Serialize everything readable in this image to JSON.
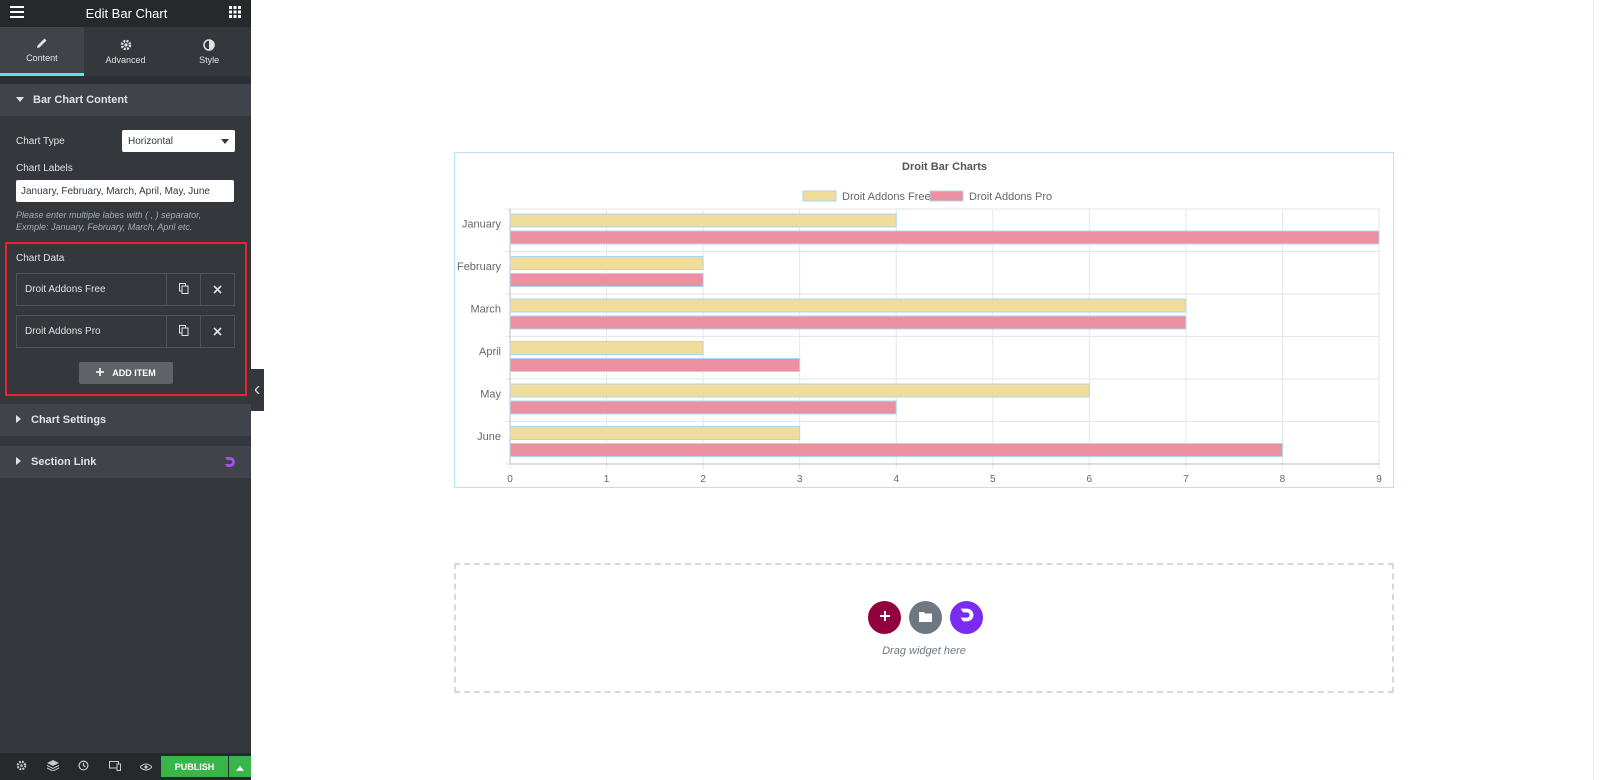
{
  "topbar": {
    "title": "Edit Bar Chart"
  },
  "tabs": [
    {
      "label": "Content",
      "icon": "pencil-icon"
    },
    {
      "label": "Advanced",
      "icon": "gear-icon"
    },
    {
      "label": "Style",
      "icon": "half-circle-icon"
    }
  ],
  "content_section": {
    "title": "Bar Chart Content",
    "chart_type_label": "Chart Type",
    "chart_type_value": "Horizontal",
    "chart_labels_label": "Chart Labels",
    "chart_labels_value": "January, February, March, April, May, June",
    "labels_desc_line1": "Please enter multiple labes with ( , ) separator,",
    "labels_desc_line2": "Exmple: January, February, March, April etc.",
    "chart_data_label": "Chart Data",
    "items": [
      {
        "title": "Droit Addons Free"
      },
      {
        "title": "Droit Addons Pro"
      }
    ],
    "add_item_label": "ADD ITEM"
  },
  "collapsed_sections": [
    {
      "title": "Chart Settings"
    },
    {
      "title": "Section Link"
    }
  ],
  "bottombar": {
    "publish_label": "PUBLISH"
  },
  "dropzone": {
    "text": "Drag widget here"
  },
  "colors": {
    "free_fill": "#f0dc9b",
    "pro_fill": "#ec8fa0",
    "bar_border": "#a9d9ef",
    "accent_add": "#93003f",
    "accent_brand": "#7a2bf0",
    "publish": "#39b54a"
  },
  "chart_data": {
    "type": "bar",
    "orientation": "horizontal",
    "title": "Droit Bar Charts",
    "categories": [
      "January",
      "February",
      "March",
      "April",
      "May",
      "June"
    ],
    "series": [
      {
        "name": "Droit Addons Free",
        "values": [
          4,
          2,
          7,
          2,
          6,
          3
        ]
      },
      {
        "name": "Droit Addons Pro",
        "values": [
          9,
          2,
          7,
          3,
          4,
          8
        ]
      }
    ],
    "xlim": [
      0,
      9
    ],
    "xticks": [
      "0",
      "1",
      "2",
      "3",
      "4",
      "5",
      "6",
      "7",
      "8",
      "9"
    ],
    "grid": true,
    "legend": "top"
  }
}
